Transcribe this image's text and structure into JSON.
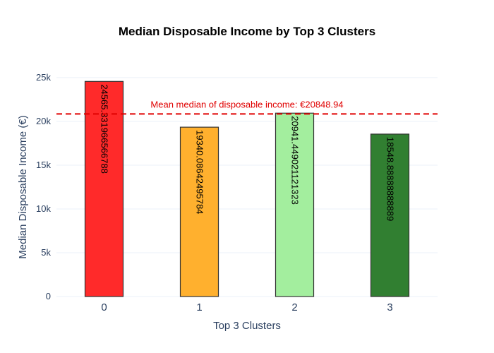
{
  "chart_data": {
    "type": "bar",
    "title": "Median Disposable Income by Top 3 Clusters",
    "xlabel": "Top 3 Clusters",
    "ylabel": "Median Disposable Income (€)",
    "categories": [
      "0",
      "1",
      "2",
      "3"
    ],
    "values": [
      24565.331966566788,
      19340.08642495784,
      20941.449021121323,
      18548.88888888889
    ],
    "value_labels": [
      "24565.331966566788",
      "19340.08642495784",
      "20941.449021121323",
      "18548.88888888889"
    ],
    "bar_colors": [
      "#ff2a2a",
      "#ffb02e",
      "#a3ee9e",
      "#317f31"
    ],
    "ylim": [
      0,
      25800
    ],
    "yticks": [
      0,
      5000,
      10000,
      15000,
      20000,
      25000
    ],
    "ytick_labels": [
      "0",
      "5k",
      "10k",
      "15k",
      "20k",
      "25k"
    ],
    "grid": true,
    "legend": "none",
    "reference_line": {
      "value": 20848.94,
      "label": "Mean median of disposable income: €20848.94",
      "color": "#e00000",
      "style": "dashed"
    }
  }
}
